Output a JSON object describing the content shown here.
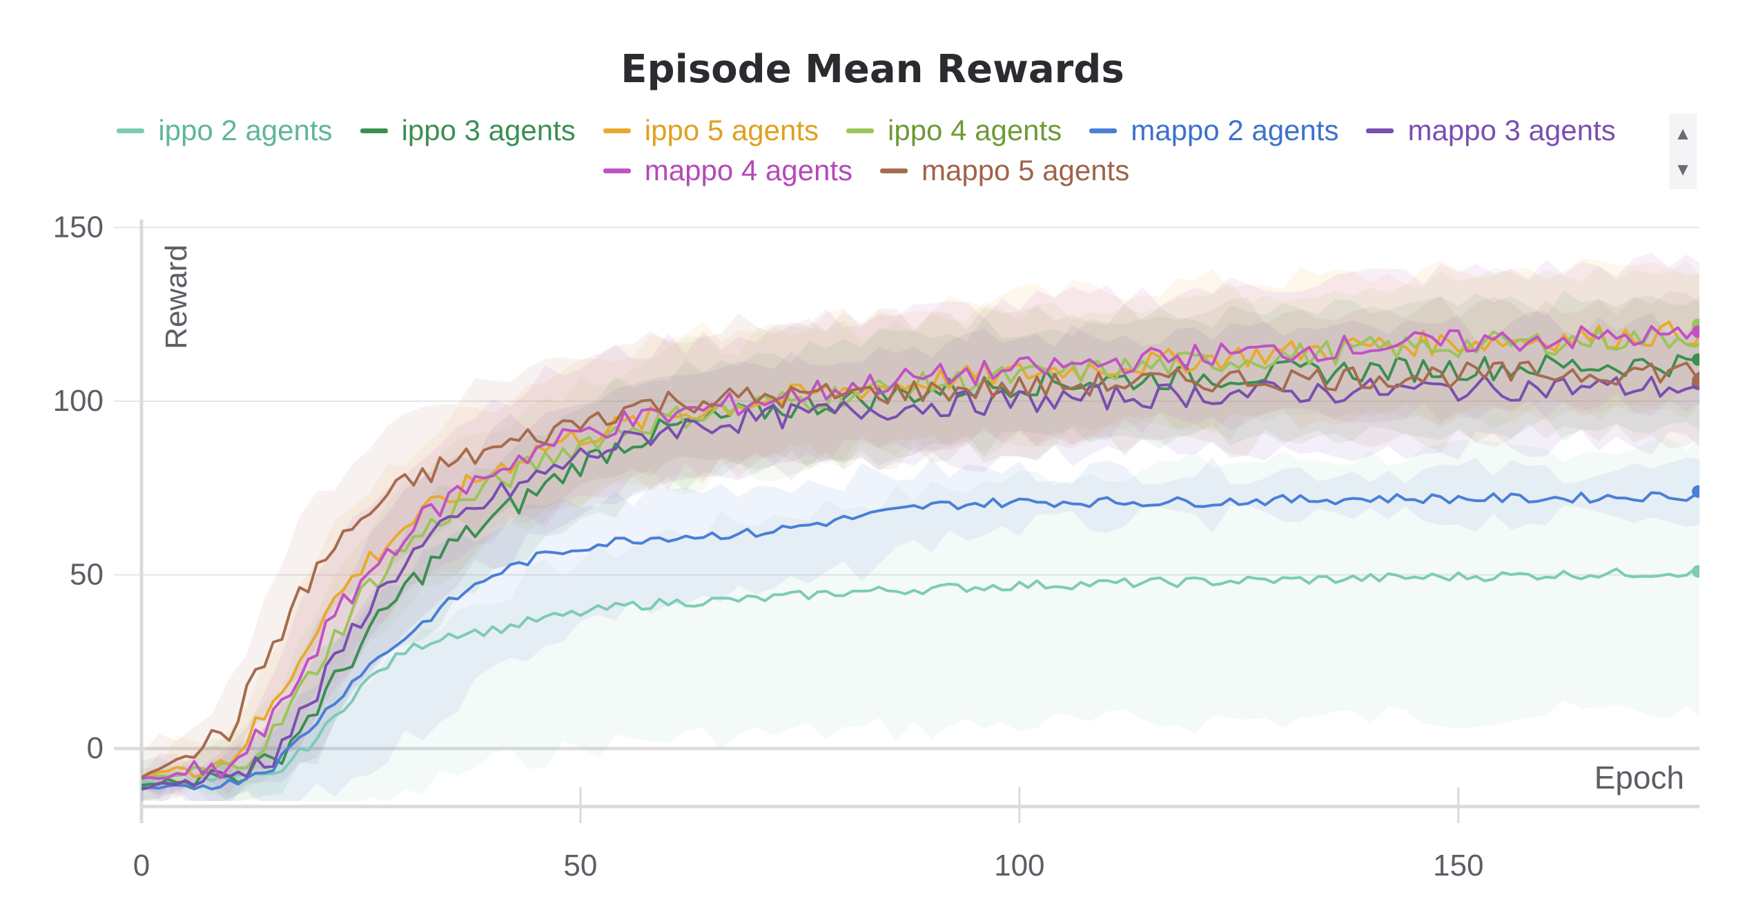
{
  "title": "Episode Mean Rewards",
  "legend_arrows": {
    "up": "▲",
    "down": "▼"
  },
  "chart_data": {
    "type": "line",
    "title": "Episode Mean Rewards",
    "xlabel": "Epoch",
    "ylabel": "Reward",
    "xlim": [
      0,
      200
    ],
    "ylim": [
      -16,
      155
    ],
    "xticks": [
      0,
      50,
      100,
      150
    ],
    "yticks": [
      0,
      50,
      100,
      150
    ],
    "grid": true,
    "legend_position": "top",
    "shaded_bands": true,
    "series": [
      {
        "name": "ippo 2 agents",
        "color": "#7dcbb5",
        "x": [
          0,
          10,
          15,
          20,
          25,
          30,
          35,
          40,
          45,
          50,
          55,
          60,
          70,
          80,
          90,
          100,
          120,
          140,
          160,
          180,
          200
        ],
        "y": [
          -10,
          -9,
          -8,
          3,
          18,
          28,
          33,
          34,
          37,
          39,
          41,
          42,
          43,
          45,
          46,
          47,
          48,
          49,
          50,
          51,
          51
        ],
        "band": [
          [
            -12,
            -8
          ],
          [
            -14,
            -4
          ],
          [
            -18,
            -2
          ],
          [
            -20,
            8
          ],
          [
            -18,
            20
          ],
          [
            -14,
            30
          ],
          [
            -8,
            38
          ],
          [
            -4,
            44
          ],
          [
            -2,
            50
          ],
          [
            0,
            54
          ],
          [
            2,
            58
          ],
          [
            3,
            62
          ],
          [
            4,
            66
          ],
          [
            5,
            70
          ],
          [
            6,
            74
          ],
          [
            7,
            78
          ],
          [
            8,
            82
          ],
          [
            9,
            84
          ],
          [
            10,
            86
          ],
          [
            11,
            88
          ],
          [
            12,
            90
          ]
        ]
      },
      {
        "name": "ippo 3 agents",
        "color": "#3c8f51",
        "x": [
          0,
          10,
          15,
          20,
          25,
          30,
          35,
          40,
          45,
          50,
          55,
          60,
          70,
          80,
          90,
          100,
          120,
          140,
          160,
          180,
          200
        ],
        "y": [
          -10,
          -8,
          -4,
          12,
          30,
          46,
          58,
          66,
          74,
          82,
          88,
          92,
          97,
          100,
          103,
          105,
          107,
          109,
          110,
          111,
          112
        ],
        "band": [
          [
            -14,
            -6
          ],
          [
            -14,
            -2
          ],
          [
            -12,
            6
          ],
          [
            -2,
            26
          ],
          [
            16,
            44
          ],
          [
            30,
            62
          ],
          [
            40,
            76
          ],
          [
            48,
            84
          ],
          [
            56,
            92
          ],
          [
            64,
            100
          ],
          [
            70,
            106
          ],
          [
            74,
            110
          ],
          [
            80,
            114
          ],
          [
            84,
            116
          ],
          [
            86,
            120
          ],
          [
            88,
            122
          ],
          [
            90,
            124
          ],
          [
            92,
            126
          ],
          [
            92,
            128
          ],
          [
            94,
            128
          ],
          [
            94,
            130
          ]
        ]
      },
      {
        "name": "ippo 5 agents",
        "color": "#e8aa2d",
        "x": [
          0,
          10,
          15,
          20,
          25,
          30,
          35,
          40,
          45,
          50,
          55,
          60,
          70,
          80,
          90,
          100,
          120,
          140,
          160,
          180,
          200
        ],
        "y": [
          -8,
          -3,
          12,
          36,
          52,
          64,
          72,
          80,
          86,
          90,
          93,
          96,
          100,
          103,
          106,
          108,
          112,
          116,
          118,
          120,
          121
        ],
        "band": [
          [
            -12,
            -4
          ],
          [
            -10,
            6
          ],
          [
            -4,
            28
          ],
          [
            16,
            56
          ],
          [
            32,
            72
          ],
          [
            44,
            84
          ],
          [
            52,
            94
          ],
          [
            60,
            100
          ],
          [
            66,
            106
          ],
          [
            70,
            112
          ],
          [
            74,
            116
          ],
          [
            78,
            118
          ],
          [
            82,
            122
          ],
          [
            86,
            124
          ],
          [
            88,
            128
          ],
          [
            90,
            130
          ],
          [
            94,
            134
          ],
          [
            96,
            136
          ],
          [
            98,
            138
          ],
          [
            100,
            140
          ],
          [
            100,
            142
          ]
        ]
      },
      {
        "name": "ippo 4 agents",
        "color": "#9cc45a",
        "x": [
          0,
          10,
          15,
          20,
          25,
          30,
          35,
          40,
          45,
          50,
          55,
          60,
          70,
          80,
          90,
          100,
          120,
          140,
          160,
          180,
          200
        ],
        "y": [
          -9,
          -6,
          4,
          24,
          44,
          58,
          68,
          76,
          82,
          88,
          92,
          95,
          99,
          102,
          105,
          107,
          111,
          115,
          117,
          119,
          122
        ],
        "band": [
          [
            -13,
            -5
          ],
          [
            -12,
            0
          ],
          [
            -8,
            16
          ],
          [
            6,
            42
          ],
          [
            26,
            62
          ],
          [
            40,
            76
          ],
          [
            50,
            86
          ],
          [
            58,
            94
          ],
          [
            64,
            100
          ],
          [
            70,
            106
          ],
          [
            74,
            110
          ],
          [
            76,
            114
          ],
          [
            80,
            118
          ],
          [
            84,
            120
          ],
          [
            86,
            124
          ],
          [
            88,
            126
          ],
          [
            92,
            130
          ],
          [
            94,
            134
          ],
          [
            96,
            136
          ],
          [
            98,
            138
          ],
          [
            100,
            142
          ]
        ]
      },
      {
        "name": "mappo 2 agents",
        "color": "#4a7fd6",
        "x": [
          0,
          10,
          15,
          20,
          25,
          30,
          35,
          40,
          45,
          50,
          55,
          60,
          70,
          80,
          90,
          100,
          120,
          140,
          160,
          180,
          200
        ],
        "y": [
          -12,
          -10,
          -5,
          8,
          22,
          32,
          42,
          50,
          55,
          58,
          60,
          61,
          62,
          66,
          70,
          71,
          71,
          72,
          72,
          73,
          74
        ],
        "band": [
          [
            -16,
            -8
          ],
          [
            -16,
            -4
          ],
          [
            -16,
            4
          ],
          [
            -14,
            22
          ],
          [
            -8,
            38
          ],
          [
            2,
            50
          ],
          [
            12,
            58
          ],
          [
            22,
            64
          ],
          [
            30,
            68
          ],
          [
            36,
            70
          ],
          [
            40,
            72
          ],
          [
            42,
            74
          ],
          [
            44,
            76
          ],
          [
            50,
            78
          ],
          [
            60,
            80
          ],
          [
            64,
            80
          ],
          [
            66,
            80
          ],
          [
            66,
            80
          ],
          [
            66,
            80
          ],
          [
            68,
            80
          ],
          [
            68,
            80
          ]
        ]
      },
      {
        "name": "mappo 3 agents",
        "color": "#7a4fb0",
        "x": [
          0,
          10,
          15,
          20,
          25,
          30,
          35,
          40,
          45,
          50,
          55,
          60,
          70,
          80,
          90,
          100,
          120,
          140,
          160,
          180,
          200
        ],
        "y": [
          -11,
          -8,
          -2,
          16,
          38,
          54,
          64,
          72,
          78,
          84,
          88,
          92,
          95,
          97,
          99,
          100,
          102,
          103,
          104,
          104,
          105
        ],
        "band": [
          [
            -15,
            -7
          ],
          [
            -14,
            -2
          ],
          [
            -10,
            10
          ],
          [
            0,
            34
          ],
          [
            20,
            56
          ],
          [
            36,
            72
          ],
          [
            46,
            82
          ],
          [
            54,
            90
          ],
          [
            60,
            96
          ],
          [
            66,
            100
          ],
          [
            70,
            106
          ],
          [
            74,
            110
          ],
          [
            78,
            112
          ],
          [
            80,
            114
          ],
          [
            82,
            116
          ],
          [
            84,
            118
          ],
          [
            86,
            120
          ],
          [
            86,
            120
          ],
          [
            88,
            122
          ],
          [
            88,
            122
          ],
          [
            88,
            122
          ]
        ]
      },
      {
        "name": "mappo 4 agents",
        "color": "#c152c6",
        "x": [
          0,
          10,
          15,
          20,
          25,
          30,
          35,
          40,
          45,
          50,
          55,
          60,
          70,
          80,
          90,
          100,
          120,
          140,
          160,
          180,
          200
        ],
        "y": [
          -9,
          -6,
          8,
          30,
          48,
          62,
          72,
          80,
          86,
          91,
          94,
          96,
          100,
          104,
          107,
          109,
          113,
          116,
          118,
          119,
          120
        ],
        "band": [
          [
            -13,
            -5
          ],
          [
            -12,
            0
          ],
          [
            -6,
            22
          ],
          [
            10,
            50
          ],
          [
            28,
            68
          ],
          [
            42,
            82
          ],
          [
            52,
            92
          ],
          [
            60,
            100
          ],
          [
            66,
            106
          ],
          [
            72,
            110
          ],
          [
            76,
            114
          ],
          [
            78,
            116
          ],
          [
            82,
            120
          ],
          [
            86,
            124
          ],
          [
            88,
            126
          ],
          [
            90,
            128
          ],
          [
            94,
            132
          ],
          [
            96,
            136
          ],
          [
            98,
            138
          ],
          [
            100,
            140
          ],
          [
            100,
            142
          ]
        ]
      },
      {
        "name": "mappo 5 agents",
        "color": "#a66b4f",
        "x": [
          0,
          10,
          15,
          20,
          25,
          30,
          35,
          40,
          45,
          50,
          55,
          60,
          70,
          80,
          90,
          100,
          120,
          140,
          160,
          180,
          200
        ],
        "y": [
          -8,
          5,
          30,
          52,
          66,
          76,
          82,
          86,
          90,
          94,
          98,
          100,
          101,
          102,
          103,
          104,
          106,
          107,
          108,
          109,
          106
        ],
        "band": [
          [
            -12,
            -4
          ],
          [
            -6,
            18
          ],
          [
            12,
            50
          ],
          [
            32,
            72
          ],
          [
            46,
            86
          ],
          [
            56,
            96
          ],
          [
            62,
            102
          ],
          [
            66,
            106
          ],
          [
            70,
            110
          ],
          [
            74,
            114
          ],
          [
            78,
            118
          ],
          [
            80,
            120
          ],
          [
            82,
            122
          ],
          [
            84,
            122
          ],
          [
            84,
            124
          ],
          [
            86,
            124
          ],
          [
            88,
            126
          ],
          [
            88,
            126
          ],
          [
            90,
            128
          ],
          [
            90,
            128
          ],
          [
            86,
            126
          ]
        ]
      }
    ]
  }
}
